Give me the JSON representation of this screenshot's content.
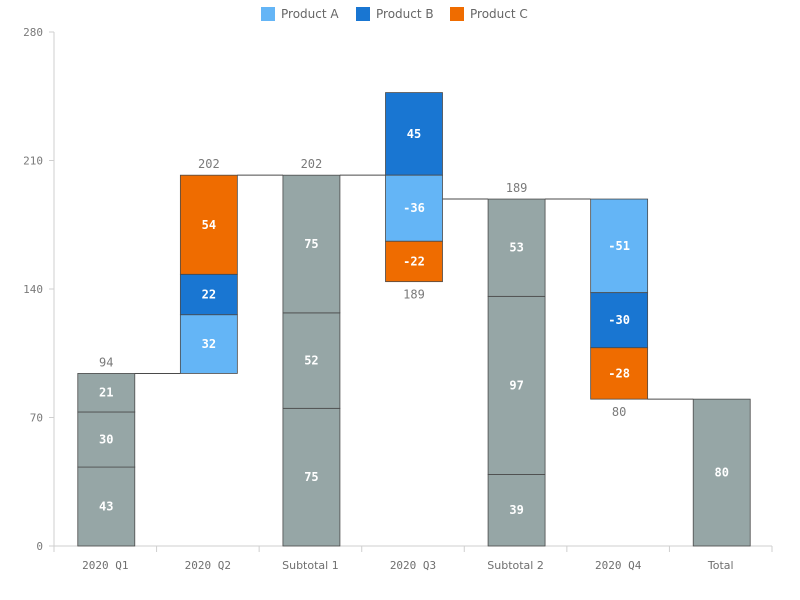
{
  "chart_data": {
    "type": "waterfall-stacked-bar",
    "title": "",
    "xlabel": "",
    "ylabel": "",
    "ylim": [
      0,
      280
    ],
    "yticks": [
      0,
      70,
      140,
      210,
      280
    ],
    "grid": false,
    "legend_position": "top-center",
    "legend": [
      {
        "name": "Product A",
        "color": "#64b5f6"
      },
      {
        "name": "Product B",
        "color": "#1976d2"
      },
      {
        "name": "Product C",
        "color": "#ef6c00"
      }
    ],
    "subtotal_color": "#96a6a6",
    "categories": [
      "2020 Q1",
      "2020 Q2",
      "Subtotal 1",
      "2020 Q3",
      "Subtotal 2",
      "2020 Q4",
      "Total"
    ],
    "bars": [
      {
        "category": "2020 Q1",
        "kind": "total",
        "segments": [
          {
            "value": 43,
            "label": "43",
            "color": "#96a6a6"
          },
          {
            "value": 30,
            "label": "30",
            "color": "#96a6a6"
          },
          {
            "value": 21,
            "label": "21",
            "color": "#96a6a6"
          }
        ],
        "top_label": "94"
      },
      {
        "category": "2020 Q2",
        "kind": "delta",
        "start": 94,
        "segments": [
          {
            "series": "Product A",
            "value": 32,
            "label": "32",
            "color": "#64b5f6"
          },
          {
            "series": "Product B",
            "value": 22,
            "label": "22",
            "color": "#1976d2"
          },
          {
            "series": "Product C",
            "value": 54,
            "label": "54",
            "color": "#ef6c00"
          }
        ],
        "top_label": "202"
      },
      {
        "category": "Subtotal 1",
        "kind": "total",
        "segments": [
          {
            "value": 75,
            "label": "75",
            "color": "#96a6a6"
          },
          {
            "value": 52,
            "label": "52",
            "color": "#96a6a6"
          },
          {
            "value": 75,
            "label": "75",
            "color": "#96a6a6"
          }
        ],
        "top_label": "202"
      },
      {
        "category": "2020 Q3",
        "kind": "delta-mixed",
        "start": 202,
        "segments": [
          {
            "series": "Product B",
            "value": 45,
            "label": "45",
            "color": "#1976d2",
            "from": 202,
            "to": 247
          },
          {
            "series": "Product A",
            "value": -36,
            "label": "-36",
            "color": "#64b5f6",
            "from": 202,
            "to": 166
          },
          {
            "series": "Product C",
            "value": -22,
            "label": "-22",
            "color": "#ef6c00",
            "from": 166,
            "to": 144
          }
        ],
        "bottom_label": "189"
      },
      {
        "category": "Subtotal 2",
        "kind": "total",
        "segments": [
          {
            "value": 39,
            "label": "39",
            "color": "#96a6a6"
          },
          {
            "value": 97,
            "label": "97",
            "color": "#96a6a6"
          },
          {
            "value": 53,
            "label": "53",
            "color": "#96a6a6"
          }
        ],
        "top_label": "189"
      },
      {
        "category": "2020 Q4",
        "kind": "delta",
        "start": 189,
        "segments": [
          {
            "series": "Product A",
            "value": -51,
            "label": "-51",
            "color": "#64b5f6"
          },
          {
            "series": "Product B",
            "value": -30,
            "label": "-30",
            "color": "#1976d2"
          },
          {
            "series": "Product C",
            "value": -28,
            "label": "-28",
            "color": "#ef6c00"
          }
        ],
        "bottom_label": "80"
      },
      {
        "category": "Total",
        "kind": "total",
        "segments": [
          {
            "value": 80,
            "label": "80",
            "color": "#96a6a6"
          }
        ]
      }
    ],
    "connectors": [
      {
        "from": "2020 Q1",
        "to": "2020 Q2",
        "y": 94
      },
      {
        "from": "2020 Q2",
        "to": "Subtotal 1",
        "y": 202
      },
      {
        "from": "Subtotal 1",
        "to": "2020 Q3",
        "y": 202
      },
      {
        "from": "2020 Q3",
        "to": "Subtotal 2",
        "y": 189
      },
      {
        "from": "Subtotal 2",
        "to": "2020 Q4",
        "y": 189
      },
      {
        "from": "2020 Q4",
        "to": "Total",
        "y": 80
      }
    ]
  }
}
